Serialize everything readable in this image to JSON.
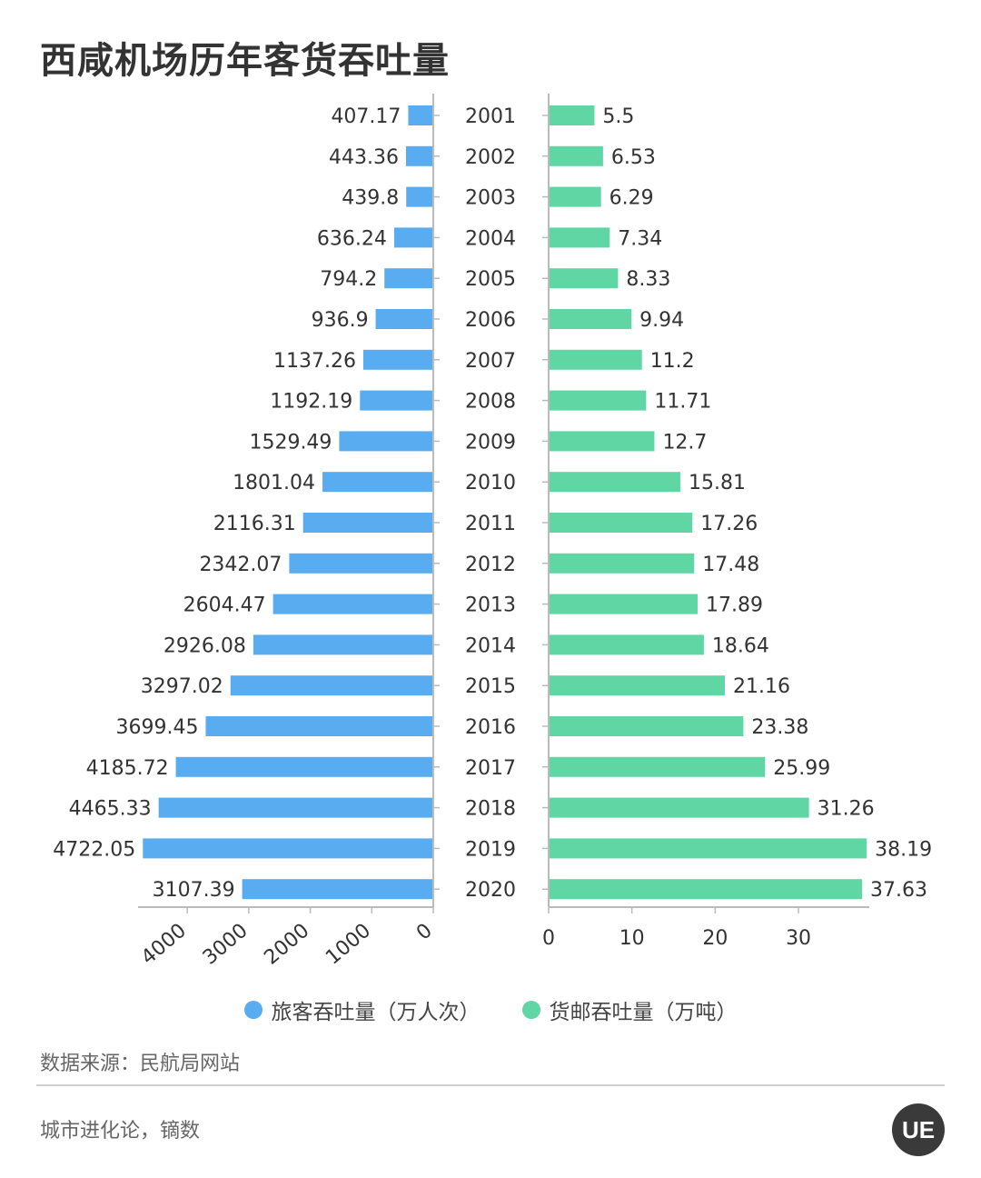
{
  "title": "西咸机场历年客货吞吐量",
  "colors": {
    "passenger": "#5aacf0",
    "cargo": "#5fd6a4",
    "axis": "#bbbbbb",
    "text": "#333333"
  },
  "legend": {
    "passenger": "旅客吞吐量（万人次）",
    "cargo": "货邮吞吐量（万吨）"
  },
  "source": "数据来源：民航局网站",
  "credit": "城市进化论，镝数",
  "logo_text": "UE",
  "chart_data": [
    {
      "type": "bar",
      "orientation": "horizontal",
      "direction": "leftward",
      "series_key": "passenger",
      "categories": [
        "2001",
        "2002",
        "2003",
        "2004",
        "2005",
        "2006",
        "2007",
        "2008",
        "2009",
        "2010",
        "2011",
        "2012",
        "2013",
        "2014",
        "2015",
        "2016",
        "2017",
        "2018",
        "2019",
        "2020"
      ],
      "values": [
        407.17,
        443.36,
        439.8,
        636.24,
        794.2,
        936.9,
        1137.26,
        1192.19,
        1529.49,
        1801.04,
        2116.31,
        2342.07,
        2604.47,
        2926.08,
        3297.02,
        3699.45,
        4185.72,
        4465.33,
        4722.05,
        3107.39
      ],
      "xticks": [
        "4000",
        "3000",
        "2000",
        "1000",
        "0"
      ],
      "xlim": [
        0,
        4800
      ],
      "grid": false
    },
    {
      "type": "bar",
      "orientation": "horizontal",
      "direction": "rightward",
      "series_key": "cargo",
      "categories": [
        "2001",
        "2002",
        "2003",
        "2004",
        "2005",
        "2006",
        "2007",
        "2008",
        "2009",
        "2010",
        "2011",
        "2012",
        "2013",
        "2014",
        "2015",
        "2016",
        "2017",
        "2018",
        "2019",
        "2020"
      ],
      "values": [
        5.5,
        6.53,
        6.29,
        7.34,
        8.33,
        9.94,
        11.2,
        11.71,
        12.7,
        15.81,
        17.26,
        17.48,
        17.89,
        18.64,
        21.16,
        23.38,
        25.99,
        31.26,
        38.19,
        37.63
      ],
      "xticks": [
        "0",
        "10",
        "20",
        "30"
      ],
      "xlim": [
        0,
        38.5
      ],
      "grid": false
    }
  ]
}
